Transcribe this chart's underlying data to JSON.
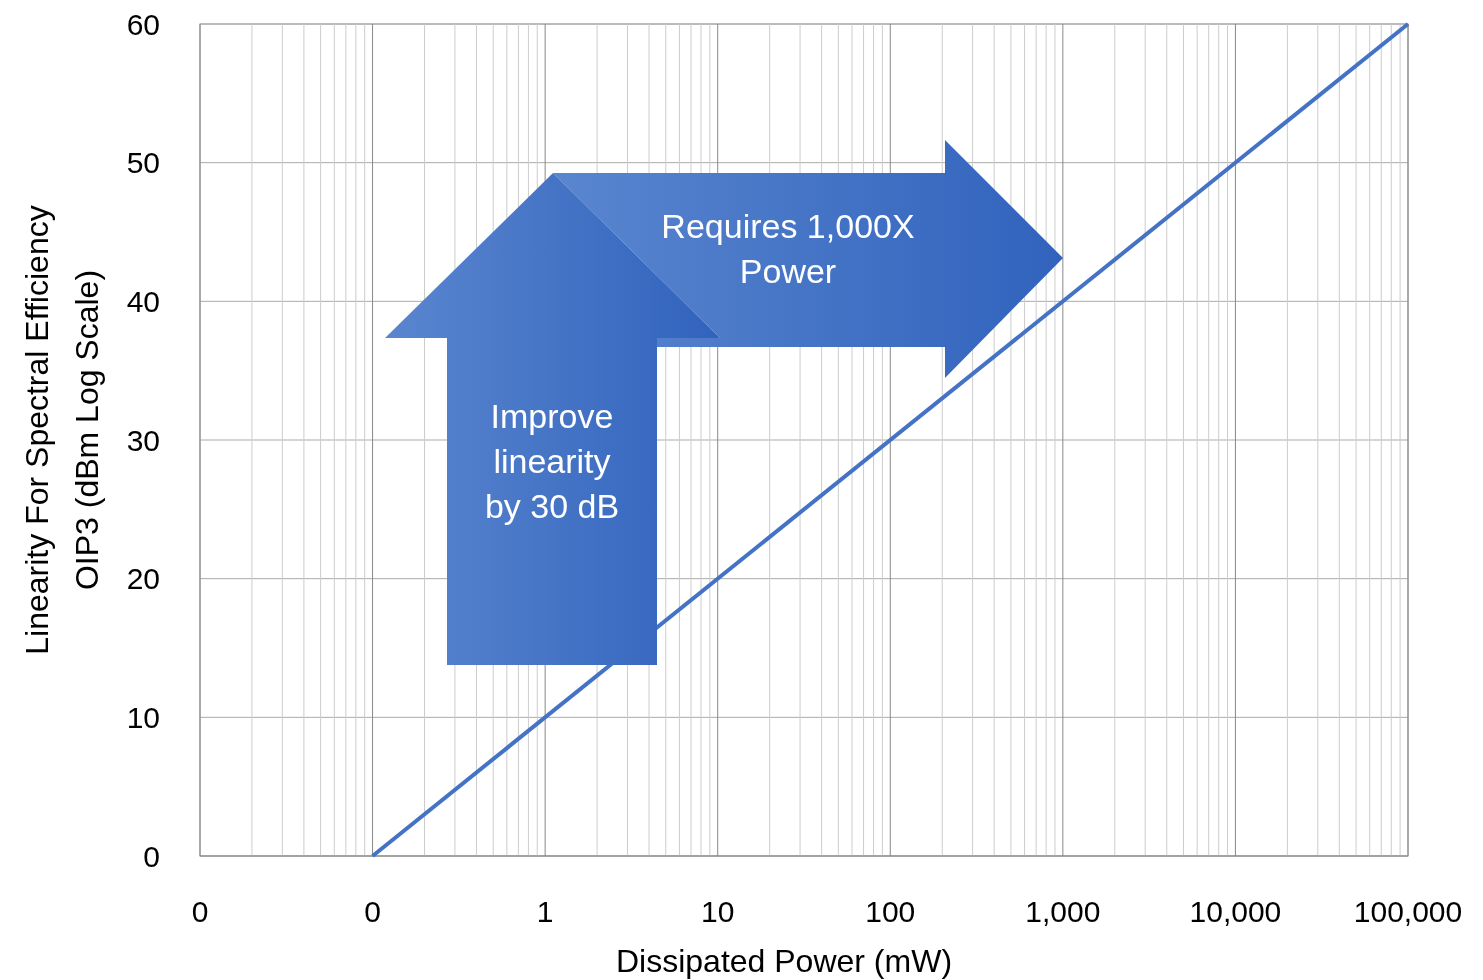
{
  "chart_data": {
    "type": "line",
    "xlabel": "Dissipated Power (mW)",
    "ylabel": "Linearity For Spectral Efficiency\nOIP3 (dBm Log Scale)",
    "log": "x",
    "xlim": [
      0.01,
      100000
    ],
    "ylim": [
      0,
      60
    ],
    "xticks": [
      {
        "value": 0.01,
        "label": "0"
      },
      {
        "value": 0.1,
        "label": "0"
      },
      1,
      10,
      100,
      {
        "value": 1000,
        "label": "1,000"
      },
      {
        "value": 10000,
        "label": "10,000"
      },
      {
        "value": 100000,
        "label": "100,000"
      }
    ],
    "yticks": [
      0,
      10,
      20,
      30,
      40,
      50,
      60
    ],
    "grid": true,
    "series": [
      {
        "color": "#4472c4",
        "x": [
          0.1,
          100000
        ],
        "values": [
          0,
          60
        ]
      }
    ],
    "annotations": [
      "Improve\nlinearity\nby 30 dB",
      "Requires 1,000X\nPower"
    ]
  }
}
